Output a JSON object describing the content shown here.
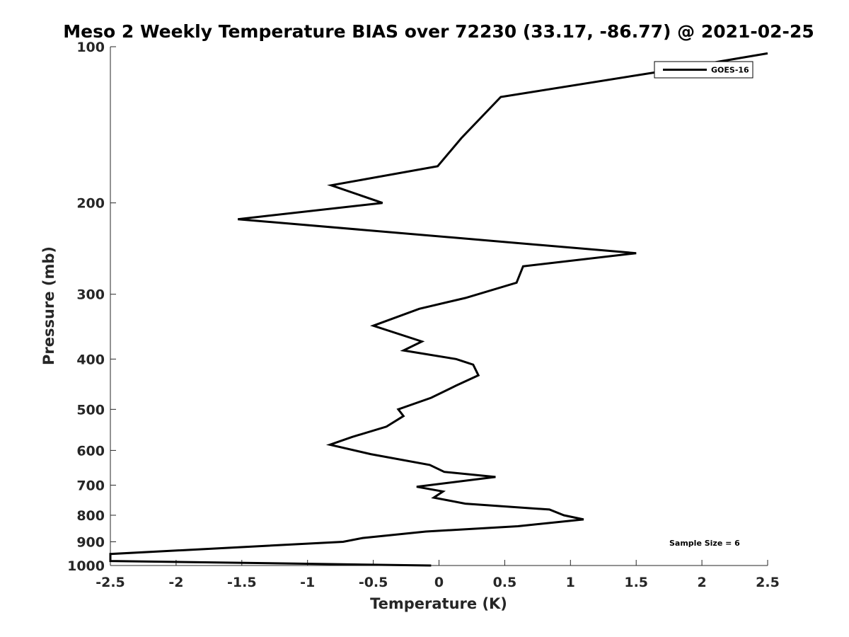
{
  "chart_data": {
    "type": "line",
    "title": "Meso 2 Weekly Temperature BIAS over 72230 (33.17, -86.77) @ 2021-02-25",
    "xlabel": "Temperature (K)",
    "ylabel": "Pressure (mb)",
    "xlim": [
      -2.5,
      2.5
    ],
    "ylim": [
      100,
      1000
    ],
    "y_scale": "log",
    "y_reversed": true,
    "x_ticks": [
      "-2.5",
      "-2",
      "-1.5",
      "-1",
      "-0.5",
      "0",
      "0.5",
      "1",
      "1.5",
      "2",
      "2.5"
    ],
    "y_ticks": [
      "100",
      "200",
      "300",
      "400",
      "500",
      "600",
      "700",
      "800",
      "900",
      "1000"
    ],
    "grid": false,
    "legend_position": "top-right",
    "annotation": "Sample Size = 6",
    "series": [
      {
        "name": "GOES-16",
        "color": "#000000",
        "points": [
          [
            2.5,
            103
          ],
          [
            1.65,
            112
          ],
          [
            0.47,
            125
          ],
          [
            0.17,
            150
          ],
          [
            -0.01,
            170
          ],
          [
            -0.82,
            185
          ],
          [
            -0.43,
            200
          ],
          [
            -1.53,
            215
          ],
          [
            1.5,
            250
          ],
          [
            0.64,
            265
          ],
          [
            0.59,
            285
          ],
          [
            0.2,
            305
          ],
          [
            -0.15,
            320
          ],
          [
            -0.5,
            345
          ],
          [
            -0.13,
            370
          ],
          [
            -0.27,
            385
          ],
          [
            0.13,
            400
          ],
          [
            0.26,
            410
          ],
          [
            0.3,
            430
          ],
          [
            0.13,
            450
          ],
          [
            -0.06,
            475
          ],
          [
            -0.31,
            500
          ],
          [
            -0.27,
            515
          ],
          [
            -0.4,
            540
          ],
          [
            -0.66,
            565
          ],
          [
            -0.83,
            585
          ],
          [
            -0.52,
            610
          ],
          [
            -0.07,
            640
          ],
          [
            0.04,
            660
          ],
          [
            0.43,
            675
          ],
          [
            -0.17,
            705
          ],
          [
            0.03,
            720
          ],
          [
            -0.04,
            740
          ],
          [
            0.2,
            760
          ],
          [
            0.84,
            780
          ],
          [
            0.95,
            800
          ],
          [
            1.1,
            815
          ],
          [
            0.6,
            840
          ],
          [
            -0.1,
            860
          ],
          [
            -0.58,
            885
          ],
          [
            -0.73,
            900
          ],
          [
            -2.5,
            950
          ],
          [
            -2.5,
            980
          ],
          [
            -0.06,
            1000
          ]
        ]
      }
    ]
  }
}
